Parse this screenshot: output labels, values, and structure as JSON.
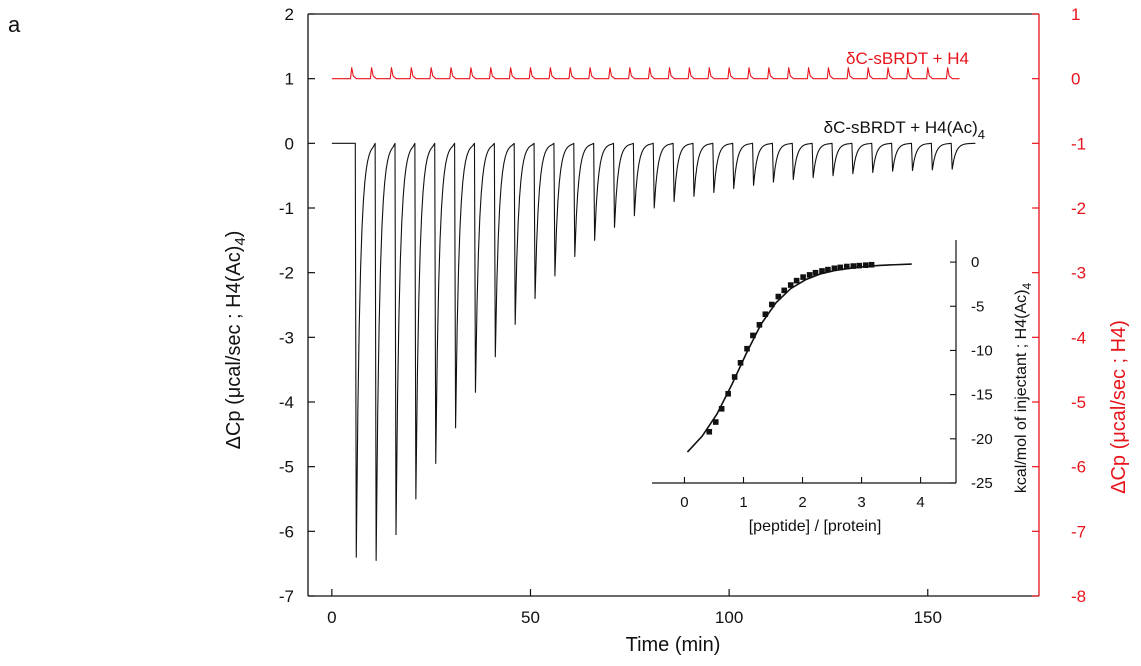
{
  "chart_data": {
    "type": "line",
    "panel_label": "a",
    "xlabel": "Time (min)",
    "ylabel": "ΔCp (μcal/sec ; H4(Ac)",
    "ylabel_sub": "4",
    "ylabel_end": ")",
    "ylabel_right": "ΔCp (μcal/sec ; H4)",
    "xlim": [
      -6,
      178
    ],
    "ylim": [
      -7,
      2
    ],
    "ylim_right": [
      -8,
      1
    ],
    "x_ticks": [
      0,
      50,
      100,
      150
    ],
    "y_ticks": [
      2,
      1,
      0,
      -1,
      -2,
      -3,
      -4,
      -5,
      -6,
      -7
    ],
    "y_ticks_right": [
      1,
      0,
      -1,
      -2,
      -3,
      -4,
      -5,
      -6,
      -7,
      -8
    ],
    "series": [
      {
        "name": "δC-sBRDT + H4",
        "color": "#e8141b",
        "axis": "right",
        "baseline": 0,
        "x_range": [
          0,
          158
        ],
        "injection_times": [
          5,
          10,
          15,
          20,
          25,
          30,
          35,
          40,
          45,
          50,
          55,
          60,
          65,
          70,
          75,
          80,
          85,
          90,
          95,
          100,
          105,
          110,
          115,
          120,
          125,
          130,
          135,
          140,
          145,
          150,
          155
        ],
        "peak_values": [
          0.17,
          0.17,
          0.17,
          0.17,
          0.17,
          0.17,
          0.17,
          0.17,
          0.17,
          0.17,
          0.17,
          0.17,
          0.17,
          0.17,
          0.17,
          0.17,
          0.17,
          0.17,
          0.17,
          0.17,
          0.17,
          0.17,
          0.17,
          0.17,
          0.17,
          0.17,
          0.17,
          0.17,
          0.17,
          0.17,
          0.17
        ]
      },
      {
        "name": "δC-sBRDT + H4(Ac)",
        "name_sub": "4",
        "color": "#111111",
        "axis": "left",
        "baseline": 0,
        "x_range": [
          0,
          162
        ],
        "injection_times": [
          6,
          11,
          16,
          21,
          26,
          31,
          36,
          41,
          46,
          51,
          56,
          61,
          66,
          71,
          76,
          81,
          86,
          91,
          96,
          101,
          106,
          111,
          116,
          121,
          126,
          131,
          136,
          141,
          146,
          151,
          156
        ],
        "peak_values": [
          -6.4,
          -6.45,
          -6.05,
          -5.5,
          -4.95,
          -4.4,
          -3.85,
          -3.3,
          -2.8,
          -2.4,
          -2.05,
          -1.75,
          -1.5,
          -1.3,
          -1.12,
          -1.0,
          -0.9,
          -0.82,
          -0.76,
          -0.7,
          -0.65,
          -0.6,
          -0.56,
          -0.53,
          -0.5,
          -0.47,
          -0.45,
          -0.43,
          -0.42,
          -0.41,
          -0.4
        ]
      }
    ],
    "inset": {
      "type": "scatter",
      "xlabel": "[peptide] / [protein]",
      "ylabel": "kcal/mol of injectant ; H4(Ac)",
      "ylabel_sub": "4",
      "xlim": [
        -0.55,
        4.6
      ],
      "ylim": [
        -25,
        2.5
      ],
      "x_ticks": [
        0,
        1,
        2,
        3,
        4
      ],
      "y_ticks": [
        0,
        -5,
        -10,
        -15,
        -20,
        -25
      ],
      "points": {
        "x": [
          0.42,
          0.53,
          0.63,
          0.74,
          0.85,
          0.95,
          1.06,
          1.16,
          1.27,
          1.37,
          1.48,
          1.59,
          1.69,
          1.8,
          1.9,
          2.01,
          2.12,
          2.22,
          2.33,
          2.43,
          2.54,
          2.64,
          2.75,
          2.86,
          2.96,
          3.07,
          3.17
        ],
        "y": [
          -19.2,
          -18.1,
          -16.6,
          -14.9,
          -13.0,
          -11.4,
          -9.8,
          -8.3,
          -7.1,
          -5.9,
          -4.8,
          -3.9,
          -3.2,
          -2.6,
          -2.1,
          -1.7,
          -1.45,
          -1.2,
          -1.0,
          -0.85,
          -0.7,
          -0.6,
          -0.5,
          -0.45,
          -0.4,
          -0.35,
          -0.3
        ]
      },
      "fit": {
        "x": [
          0.05,
          0.3,
          0.55,
          0.8,
          1.05,
          1.3,
          1.55,
          1.8,
          2.05,
          2.3,
          2.55,
          2.8,
          3.05,
          3.3,
          3.55,
          3.85
        ],
        "y": [
          -21.5,
          -19.7,
          -17.2,
          -13.9,
          -10.3,
          -7.0,
          -4.6,
          -3.0,
          -2.0,
          -1.35,
          -0.95,
          -0.7,
          -0.5,
          -0.38,
          -0.3,
          -0.22
        ]
      }
    }
  }
}
